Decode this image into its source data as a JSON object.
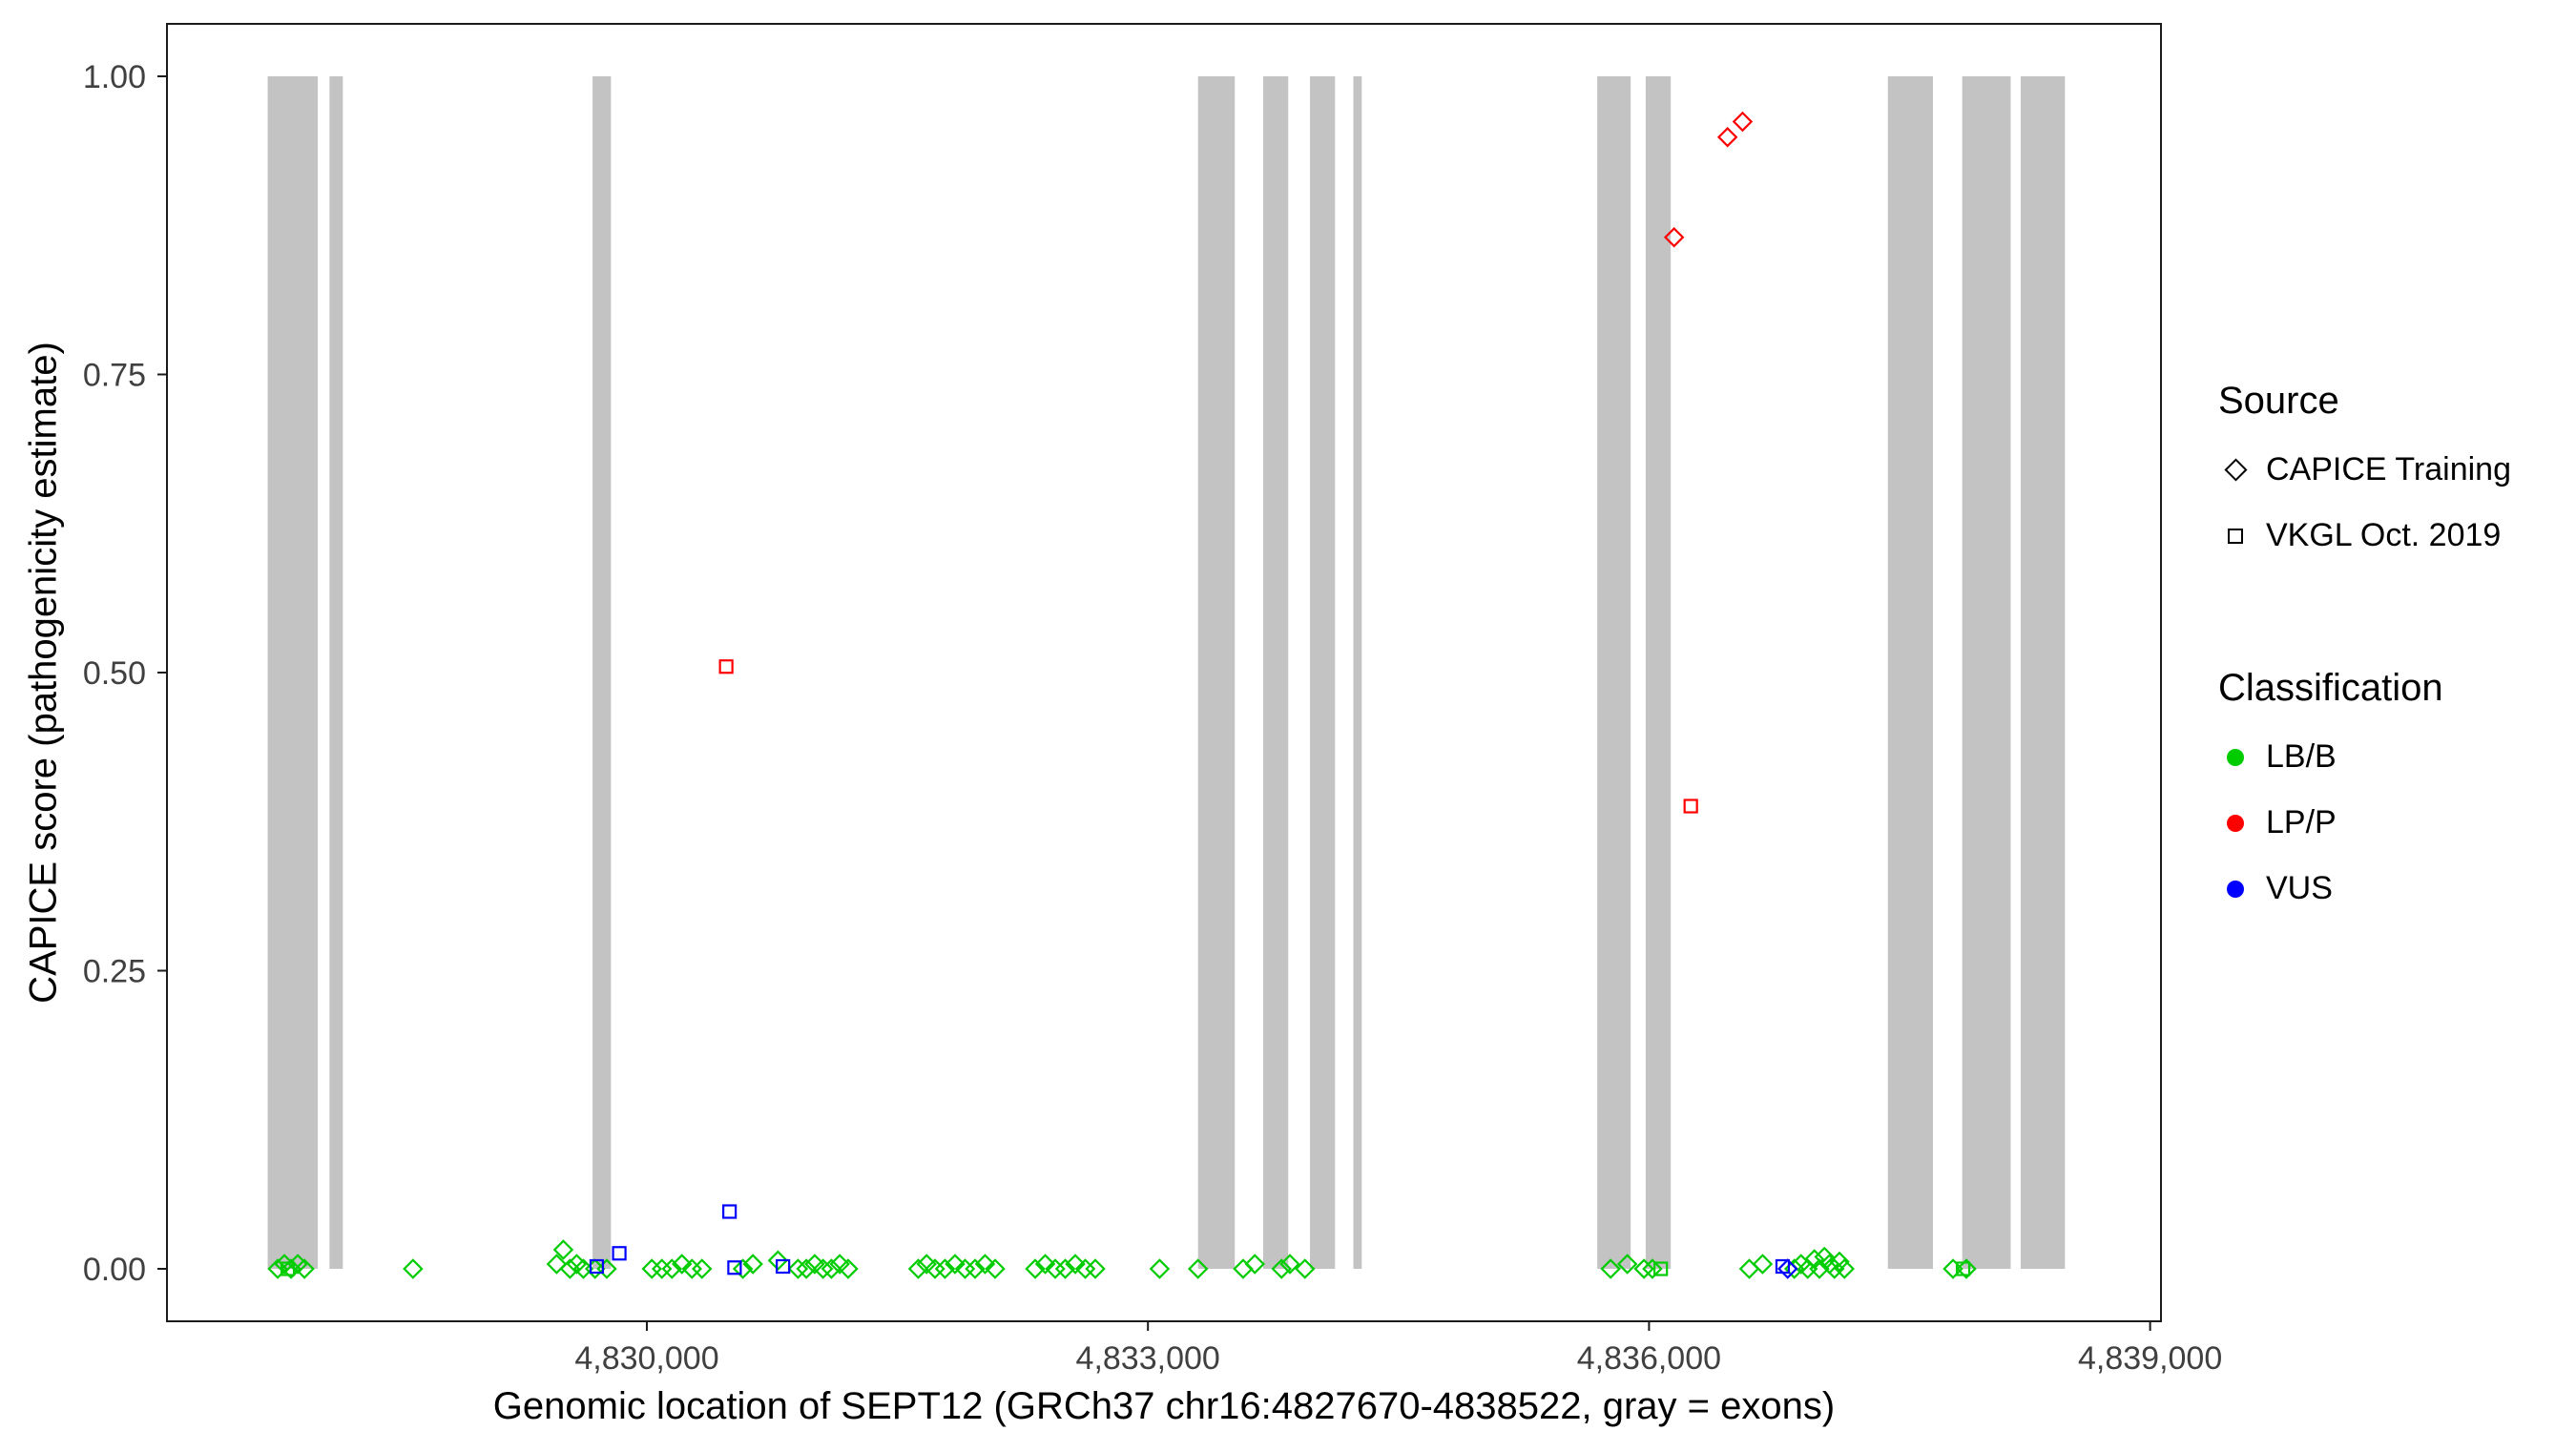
{
  "legend": {
    "source": {
      "title": "Source",
      "items": [
        {
          "label": "CAPICE Training",
          "marker": "open-diamond"
        },
        {
          "label": "VKGL Oct. 2019",
          "marker": "open-square"
        }
      ]
    },
    "classification": {
      "title": "Classification",
      "items": [
        {
          "label": "LB/B",
          "color": "#00cc00"
        },
        {
          "label": "LP/P",
          "color": "#ff0000"
        },
        {
          "label": "VUS",
          "color": "#0000ff"
        }
      ]
    }
  },
  "colors": {
    "LB/B": "#00cc00",
    "LP/P": "#ff0000",
    "VUS": "#0000ff",
    "exon": "#c3c3c3",
    "axis": "#1a1a1a",
    "tick_label": "#404040"
  },
  "chart_data": {
    "type": "scatter",
    "title": "",
    "xlabel": "Genomic location of SEPT12 (GRCh37 chr16:4827670-4838522, gray = exons)",
    "ylabel": "CAPICE score (pathogenicity estimate)",
    "x_domain": [
      4827127,
      4839065
    ],
    "ylim": [
      0,
      1
    ],
    "grid": false,
    "legend_position": "right",
    "x_ticks": {
      "values": [
        4830000,
        4833000,
        4836000,
        4839000
      ],
      "labels": [
        "4,830,000",
        "4,833,000",
        "4,836,000",
        "4,839,000"
      ]
    },
    "y_ticks": {
      "values": [
        0,
        0.25,
        0.5,
        0.75,
        1
      ],
      "labels": [
        "0.00",
        "0.25",
        "0.50",
        "0.75",
        "1.00"
      ]
    },
    "exons": [
      [
        4827730,
        4828030
      ],
      [
        4828100,
        4828180
      ],
      [
        4829675,
        4829785
      ],
      [
        4833300,
        4833520
      ],
      [
        4833690,
        4833840
      ],
      [
        4833970,
        4834120
      ],
      [
        4834230,
        4834280
      ],
      [
        4835690,
        4835890
      ],
      [
        4835980,
        4836130
      ],
      [
        4837430,
        4837700
      ],
      [
        4837875,
        4838165
      ],
      [
        4838225,
        4838490
      ]
    ],
    "shape_by_source": {
      "CAPICE Training": "open-diamond",
      "VKGL Oct. 2019": "open-square"
    },
    "points": [
      {
        "x": 4827790,
        "y": 0,
        "cls": "LB/B",
        "src": "CAPICE Training"
      },
      {
        "x": 4827830,
        "y": 0.004,
        "cls": "LB/B",
        "src": "CAPICE Training"
      },
      {
        "x": 4827850,
        "y": 0,
        "cls": "LB/B",
        "src": "VKGL Oct. 2019"
      },
      {
        "x": 4827870,
        "y": 0,
        "cls": "LB/B",
        "src": "CAPICE Training"
      },
      {
        "x": 4827910,
        "y": 0.004,
        "cls": "LB/B",
        "src": "CAPICE Training"
      },
      {
        "x": 4827950,
        "y": 0,
        "cls": "LB/B",
        "src": "CAPICE Training"
      },
      {
        "x": 4828600,
        "y": 0,
        "cls": "LB/B",
        "src": "CAPICE Training"
      },
      {
        "x": 4829460,
        "y": 0.004,
        "cls": "LB/B",
        "src": "CAPICE Training"
      },
      {
        "x": 4829500,
        "y": 0.016,
        "cls": "LB/B",
        "src": "CAPICE Training"
      },
      {
        "x": 4829540,
        "y": 0,
        "cls": "LB/B",
        "src": "CAPICE Training"
      },
      {
        "x": 4829580,
        "y": 0.004,
        "cls": "LB/B",
        "src": "CAPICE Training"
      },
      {
        "x": 4829620,
        "y": 0,
        "cls": "LB/B",
        "src": "CAPICE Training"
      },
      {
        "x": 4829690,
        "y": 0,
        "cls": "LB/B",
        "src": "CAPICE Training"
      },
      {
        "x": 4829700,
        "y": 0.002,
        "cls": "VUS",
        "src": "VKGL Oct. 2019"
      },
      {
        "x": 4829760,
        "y": 0,
        "cls": "LB/B",
        "src": "CAPICE Training"
      },
      {
        "x": 4829835,
        "y": 0.013,
        "cls": "VUS",
        "src": "VKGL Oct. 2019"
      },
      {
        "x": 4830030,
        "y": 0,
        "cls": "LB/B",
        "src": "CAPICE Training"
      },
      {
        "x": 4830090,
        "y": 0,
        "cls": "LB/B",
        "src": "CAPICE Training"
      },
      {
        "x": 4830150,
        "y": 0,
        "cls": "LB/B",
        "src": "CAPICE Training"
      },
      {
        "x": 4830210,
        "y": 0.004,
        "cls": "LB/B",
        "src": "CAPICE Training"
      },
      {
        "x": 4830270,
        "y": 0,
        "cls": "LB/B",
        "src": "CAPICE Training"
      },
      {
        "x": 4830330,
        "y": 0,
        "cls": "LB/B",
        "src": "CAPICE Training"
      },
      {
        "x": 4830475,
        "y": 0.505,
        "cls": "LP/P",
        "src": "VKGL Oct. 2019"
      },
      {
        "x": 4830495,
        "y": 0.048,
        "cls": "VUS",
        "src": "VKGL Oct. 2019"
      },
      {
        "x": 4830525,
        "y": 0.001,
        "cls": "VUS",
        "src": "VKGL Oct. 2019"
      },
      {
        "x": 4830575,
        "y": 0,
        "cls": "LB/B",
        "src": "CAPICE Training"
      },
      {
        "x": 4830635,
        "y": 0.004,
        "cls": "LB/B",
        "src": "CAPICE Training"
      },
      {
        "x": 4830785,
        "y": 0.007,
        "cls": "LB/B",
        "src": "CAPICE Training"
      },
      {
        "x": 4830815,
        "y": 0.002,
        "cls": "VUS",
        "src": "VKGL Oct. 2019"
      },
      {
        "x": 4830905,
        "y": 0,
        "cls": "LB/B",
        "src": "CAPICE Training"
      },
      {
        "x": 4830955,
        "y": 0,
        "cls": "LB/B",
        "src": "CAPICE Training"
      },
      {
        "x": 4831005,
        "y": 0.004,
        "cls": "LB/B",
        "src": "CAPICE Training"
      },
      {
        "x": 4831055,
        "y": 0,
        "cls": "LB/B",
        "src": "CAPICE Training"
      },
      {
        "x": 4831105,
        "y": 0,
        "cls": "LB/B",
        "src": "CAPICE Training"
      },
      {
        "x": 4831155,
        "y": 0.004,
        "cls": "LB/B",
        "src": "CAPICE Training"
      },
      {
        "x": 4831205,
        "y": 0,
        "cls": "LB/B",
        "src": "CAPICE Training"
      },
      {
        "x": 4831625,
        "y": 0,
        "cls": "LB/B",
        "src": "CAPICE Training"
      },
      {
        "x": 4831675,
        "y": 0.004,
        "cls": "LB/B",
        "src": "CAPICE Training"
      },
      {
        "x": 4831725,
        "y": 0,
        "cls": "LB/B",
        "src": "CAPICE Training"
      },
      {
        "x": 4831785,
        "y": 0,
        "cls": "LB/B",
        "src": "CAPICE Training"
      },
      {
        "x": 4831845,
        "y": 0.004,
        "cls": "LB/B",
        "src": "CAPICE Training"
      },
      {
        "x": 4831905,
        "y": 0,
        "cls": "LB/B",
        "src": "CAPICE Training"
      },
      {
        "x": 4831965,
        "y": 0,
        "cls": "LB/B",
        "src": "CAPICE Training"
      },
      {
        "x": 4832025,
        "y": 0.004,
        "cls": "LB/B",
        "src": "CAPICE Training"
      },
      {
        "x": 4832085,
        "y": 0,
        "cls": "LB/B",
        "src": "CAPICE Training"
      },
      {
        "x": 4832325,
        "y": 0,
        "cls": "LB/B",
        "src": "CAPICE Training"
      },
      {
        "x": 4832385,
        "y": 0.004,
        "cls": "LB/B",
        "src": "CAPICE Training"
      },
      {
        "x": 4832445,
        "y": 0,
        "cls": "LB/B",
        "src": "CAPICE Training"
      },
      {
        "x": 4832505,
        "y": 0,
        "cls": "LB/B",
        "src": "CAPICE Training"
      },
      {
        "x": 4832565,
        "y": 0.004,
        "cls": "LB/B",
        "src": "CAPICE Training"
      },
      {
        "x": 4832625,
        "y": 0,
        "cls": "LB/B",
        "src": "CAPICE Training"
      },
      {
        "x": 4832685,
        "y": 0,
        "cls": "LB/B",
        "src": "CAPICE Training"
      },
      {
        "x": 4833070,
        "y": 0,
        "cls": "LB/B",
        "src": "CAPICE Training"
      },
      {
        "x": 4833300,
        "y": 0,
        "cls": "LB/B",
        "src": "CAPICE Training"
      },
      {
        "x": 4833570,
        "y": 0,
        "cls": "LB/B",
        "src": "CAPICE Training"
      },
      {
        "x": 4833640,
        "y": 0.004,
        "cls": "LB/B",
        "src": "CAPICE Training"
      },
      {
        "x": 4833800,
        "y": 0,
        "cls": "LB/B",
        "src": "CAPICE Training"
      },
      {
        "x": 4833850,
        "y": 0.004,
        "cls": "LB/B",
        "src": "CAPICE Training"
      },
      {
        "x": 4833940,
        "y": 0,
        "cls": "LB/B",
        "src": "CAPICE Training"
      },
      {
        "x": 4835770,
        "y": 0,
        "cls": "LB/B",
        "src": "CAPICE Training"
      },
      {
        "x": 4835870,
        "y": 0.004,
        "cls": "LB/B",
        "src": "CAPICE Training"
      },
      {
        "x": 4835970,
        "y": 0,
        "cls": "LB/B",
        "src": "CAPICE Training"
      },
      {
        "x": 4836020,
        "y": 0,
        "cls": "LB/B",
        "src": "CAPICE Training"
      },
      {
        "x": 4836070,
        "y": 0,
        "cls": "LB/B",
        "src": "VKGL Oct. 2019"
      },
      {
        "x": 4836150,
        "y": 0.865,
        "cls": "LP/P",
        "src": "CAPICE Training"
      },
      {
        "x": 4836250,
        "y": 0.388,
        "cls": "LP/P",
        "src": "VKGL Oct. 2019"
      },
      {
        "x": 4836470,
        "y": 0.949,
        "cls": "LP/P",
        "src": "CAPICE Training"
      },
      {
        "x": 4836560,
        "y": 0.962,
        "cls": "LP/P",
        "src": "CAPICE Training"
      },
      {
        "x": 4836600,
        "y": 0,
        "cls": "LB/B",
        "src": "CAPICE Training"
      },
      {
        "x": 4836680,
        "y": 0.004,
        "cls": "LB/B",
        "src": "CAPICE Training"
      },
      {
        "x": 4836800,
        "y": 0.002,
        "cls": "VUS",
        "src": "VKGL Oct. 2019"
      },
      {
        "x": 4836830,
        "y": 0,
        "cls": "VUS",
        "src": "CAPICE Training"
      },
      {
        "x": 4836870,
        "y": 0,
        "cls": "LB/B",
        "src": "CAPICE Training"
      },
      {
        "x": 4836910,
        "y": 0.004,
        "cls": "LB/B",
        "src": "CAPICE Training"
      },
      {
        "x": 4836950,
        "y": 0,
        "cls": "LB/B",
        "src": "CAPICE Training"
      },
      {
        "x": 4836990,
        "y": 0.008,
        "cls": "LB/B",
        "src": "CAPICE Training"
      },
      {
        "x": 4837020,
        "y": 0,
        "cls": "LB/B",
        "src": "CAPICE Training"
      },
      {
        "x": 4837050,
        "y": 0.01,
        "cls": "LB/B",
        "src": "CAPICE Training"
      },
      {
        "x": 4837080,
        "y": 0.004,
        "cls": "LB/B",
        "src": "CAPICE Training"
      },
      {
        "x": 4837110,
        "y": 0,
        "cls": "LB/B",
        "src": "CAPICE Training"
      },
      {
        "x": 4837140,
        "y": 0.006,
        "cls": "LB/B",
        "src": "CAPICE Training"
      },
      {
        "x": 4837170,
        "y": 0,
        "cls": "LB/B",
        "src": "CAPICE Training"
      },
      {
        "x": 4837820,
        "y": 0,
        "cls": "LB/B",
        "src": "CAPICE Training"
      },
      {
        "x": 4837880,
        "y": 0,
        "cls": "LB/B",
        "src": "VKGL Oct. 2019"
      },
      {
        "x": 4837900,
        "y": 0,
        "cls": "LB/B",
        "src": "CAPICE Training"
      }
    ]
  }
}
